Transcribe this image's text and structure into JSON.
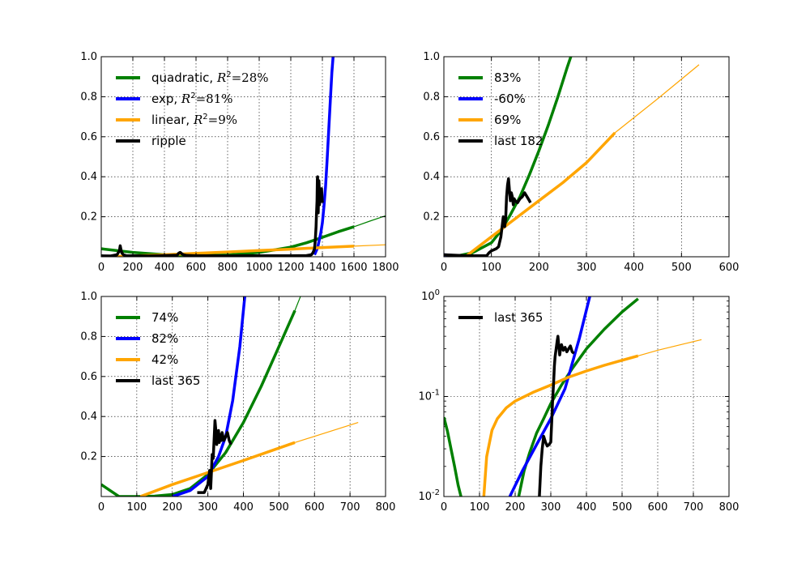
{
  "colors": {
    "quadratic": "#008000",
    "exp": "#0000ff",
    "linear": "#ffa500",
    "ripple": "#000000"
  },
  "chart_data": [
    {
      "type": "line",
      "xlim": [
        0,
        1800
      ],
      "ylim": [
        0,
        1
      ],
      "yscale": "linear",
      "xticks": [
        0,
        200,
        400,
        600,
        800,
        1000,
        1200,
        1400,
        1600,
        1800
      ],
      "yticks": [
        0.2,
        0.4,
        0.6,
        0.8,
        1.0
      ],
      "ytick_labels": [
        "0.2",
        "0.4",
        "0.6",
        "0.8",
        "1.0"
      ],
      "grid": true,
      "legend": "top-left",
      "legend_labels": [
        {
          "main": "quadratic, ",
          "math": "R",
          "sup": "2",
          "rest": "=28%"
        },
        {
          "main": "exp, ",
          "math": "R",
          "sup": "2",
          "rest": "=81%"
        },
        {
          "main": "linear, ",
          "math": "R",
          "sup": "2",
          "rest": "=9%"
        },
        {
          "main": "ripple"
        }
      ],
      "series": [
        {
          "key": "quadratic",
          "color": "#008000",
          "x": [
            0,
            200,
            400,
            600,
            800,
            1000,
            1200,
            1300,
            1400,
            1500,
            1600
          ],
          "y": [
            0.04,
            0.022,
            0.01,
            0.006,
            0.009,
            0.022,
            0.048,
            0.07,
            0.097,
            0.125,
            0.15
          ],
          "width": 3.5
        },
        {
          "key": "quadratic",
          "color": "#008000",
          "x": [
            1600,
            1700,
            1800
          ],
          "y": [
            0.15,
            0.178,
            0.205
          ],
          "width": 1.2
        },
        {
          "key": "exp",
          "color": "#0000ff",
          "x": [
            1350,
            1370,
            1390,
            1400,
            1410,
            1420,
            1430,
            1440,
            1450,
            1460,
            1470
          ],
          "y": [
            0.01,
            0.045,
            0.12,
            0.17,
            0.25,
            0.35,
            0.48,
            0.63,
            0.78,
            0.92,
            1.02
          ],
          "width": 3.5
        },
        {
          "key": "linear",
          "color": "#ffa500",
          "x": [
            0,
            200,
            400,
            600,
            800,
            1000,
            1200,
            1400,
            1600
          ],
          "y": [
            0.0,
            0.004,
            0.01,
            0.017,
            0.024,
            0.031,
            0.038,
            0.046,
            0.053
          ],
          "width": 3.5
        },
        {
          "key": "linear",
          "color": "#ffa500",
          "x": [
            1600,
            1800
          ],
          "y": [
            0.053,
            0.06
          ],
          "width": 1.2
        },
        {
          "key": "ripple",
          "color": "#000000",
          "x": [
            0,
            60,
            100,
            115,
            120,
            125,
            130,
            140,
            160,
            200,
            300,
            400,
            480,
            490,
            500,
            510,
            520,
            540,
            600,
            700,
            800,
            900,
            1000,
            1100,
            1200,
            1300,
            1330,
            1340,
            1350,
            1355,
            1360,
            1362,
            1364,
            1366,
            1368,
            1370,
            1372,
            1374,
            1376,
            1378,
            1380,
            1382,
            1384,
            1386,
            1388,
            1390,
            1392,
            1395,
            1398,
            1400
          ],
          "y": [
            0.005,
            0.004,
            0.01,
            0.03,
            0.055,
            0.035,
            0.02,
            0.01,
            0.005,
            0.005,
            0.004,
            0.006,
            0.008,
            0.018,
            0.022,
            0.015,
            0.01,
            0.007,
            0.005,
            0.005,
            0.004,
            0.005,
            0.005,
            0.005,
            0.005,
            0.006,
            0.01,
            0.02,
            0.04,
            0.08,
            0.15,
            0.2,
            0.24,
            0.28,
            0.39,
            0.4,
            0.3,
            0.22,
            0.33,
            0.38,
            0.34,
            0.26,
            0.3,
            0.33,
            0.31,
            0.28,
            0.3,
            0.34,
            0.29,
            0.27
          ],
          "width": 3.5
        }
      ]
    },
    {
      "type": "line",
      "xlim": [
        0,
        600
      ],
      "ylim": [
        0,
        1
      ],
      "yscale": "linear",
      "xticks": [
        0,
        100,
        200,
        300,
        400,
        500,
        600
      ],
      "yticks": [
        0.2,
        0.4,
        0.6,
        0.8,
        1.0
      ],
      "ytick_labels": [
        "0.2",
        "0.4",
        "0.6",
        "0.8",
        "1.0"
      ],
      "grid": true,
      "legend": "top-left",
      "legend_labels": [
        {
          "main": "83%"
        },
        {
          "main": "-60%"
        },
        {
          "main": "69%"
        },
        {
          "main": "last 182"
        }
      ],
      "series": [
        {
          "key": "quadratic",
          "color": "#008000",
          "x": [
            20,
            60,
            100,
            120,
            140,
            160,
            180,
            200,
            220,
            240,
            260,
            270
          ],
          "y": [
            0.0,
            0.02,
            0.07,
            0.13,
            0.21,
            0.3,
            0.41,
            0.53,
            0.66,
            0.8,
            0.95,
            1.02
          ],
          "width": 3.5
        },
        {
          "key": "exp",
          "color": "#0000ff",
          "x": [
            0,
            30,
            60
          ],
          "y": [
            0.01,
            0.005,
            0.002
          ],
          "width": 3.5
        },
        {
          "key": "linear",
          "color": "#ffa500",
          "x": [
            45,
            100,
            150,
            200,
            250,
            300,
            360
          ],
          "y": [
            0.0,
            0.1,
            0.19,
            0.28,
            0.37,
            0.47,
            0.62
          ],
          "width": 3.5
        },
        {
          "key": "linear",
          "color": "#ffa500",
          "x": [
            360,
            450,
            537
          ],
          "y": [
            0.62,
            0.79,
            0.96
          ],
          "width": 1.2
        },
        {
          "key": "ripple",
          "color": "#000000",
          "x": [
            0,
            50,
            90,
            95,
            100,
            110,
            115,
            120,
            125,
            128,
            130,
            132,
            134,
            136,
            138,
            140,
            142,
            144,
            146,
            148,
            150,
            155,
            160,
            165,
            170,
            175,
            180,
            182
          ],
          "y": [
            0.01,
            0.005,
            0.005,
            0.02,
            0.03,
            0.04,
            0.05,
            0.1,
            0.2,
            0.15,
            0.19,
            0.3,
            0.36,
            0.39,
            0.33,
            0.28,
            0.32,
            0.3,
            0.26,
            0.29,
            0.28,
            0.27,
            0.29,
            0.3,
            0.32,
            0.3,
            0.28,
            0.27
          ],
          "width": 3.5
        }
      ]
    },
    {
      "type": "line",
      "xlim": [
        0,
        800
      ],
      "ylim": [
        0,
        1
      ],
      "yscale": "linear",
      "xticks": [
        0,
        100,
        200,
        300,
        400,
        500,
        600,
        700,
        800
      ],
      "yticks": [
        0.2,
        0.4,
        0.6,
        0.8,
        1.0
      ],
      "ytick_labels": [
        "0.2",
        "0.4",
        "0.6",
        "0.8",
        "1.0"
      ],
      "grid": true,
      "legend": "top-left",
      "legend_labels": [
        {
          "main": "74%"
        },
        {
          "main": "82%"
        },
        {
          "main": "42%"
        },
        {
          "main": "last 365"
        }
      ],
      "series": [
        {
          "key": "quadratic",
          "color": "#008000",
          "x": [
            0,
            50,
            100,
            150,
            200,
            250,
            300,
            350,
            400,
            450,
            500,
            545
          ],
          "y": [
            0.06,
            0.0,
            0.0,
            0.002,
            0.01,
            0.04,
            0.11,
            0.22,
            0.37,
            0.55,
            0.75,
            0.93
          ],
          "width": 3.5
        },
        {
          "key": "quadratic",
          "color": "#008000",
          "x": [
            545,
            565
          ],
          "y": [
            0.93,
            1.02
          ],
          "width": 1.2
        },
        {
          "key": "exp",
          "color": "#0000ff",
          "x": [
            200,
            250,
            300,
            330,
            350,
            370,
            390,
            405
          ],
          "y": [
            0.0,
            0.03,
            0.1,
            0.2,
            0.3,
            0.48,
            0.75,
            1.02
          ],
          "width": 3.5
        },
        {
          "key": "linear",
          "color": "#ffa500",
          "x": [
            110,
            200,
            300,
            400,
            545
          ],
          "y": [
            0.0,
            0.06,
            0.12,
            0.18,
            0.27
          ],
          "width": 3.5
        },
        {
          "key": "linear",
          "color": "#ffa500",
          "x": [
            545,
            723
          ],
          "y": [
            0.27,
            0.37
          ],
          "width": 1.2
        },
        {
          "key": "ripple",
          "color": "#000000",
          "x": [
            270,
            290,
            300,
            305,
            308,
            310,
            312,
            315,
            318,
            320,
            322,
            325,
            328,
            330,
            332,
            335,
            338,
            340,
            345,
            350,
            355,
            360,
            365
          ],
          "y": [
            0.02,
            0.02,
            0.06,
            0.13,
            0.04,
            0.12,
            0.21,
            0.19,
            0.3,
            0.38,
            0.34,
            0.26,
            0.3,
            0.33,
            0.27,
            0.31,
            0.28,
            0.32,
            0.28,
            0.3,
            0.32,
            0.28,
            0.26
          ],
          "width": 3.5
        }
      ]
    },
    {
      "type": "line",
      "xlim": [
        0,
        800
      ],
      "ylim": [
        0.01,
        1
      ],
      "yscale": "log",
      "xticks": [
        0,
        100,
        200,
        300,
        400,
        500,
        600,
        700,
        800
      ],
      "yticks": [
        0.01,
        0.1,
        1
      ],
      "ytick_labels": [
        {
          "base": "10",
          "exp": "-2"
        },
        {
          "base": "10",
          "exp": "-1"
        },
        {
          "base": "10",
          "exp": "0"
        }
      ],
      "grid": true,
      "legend": "top-left",
      "legend_labels": [
        {
          "main": "last 365"
        }
      ],
      "series": [
        {
          "key": "quadratic",
          "color": "#008000",
          "x": [
            0,
            10,
            20,
            30,
            40,
            48
          ],
          "y": [
            0.062,
            0.045,
            0.03,
            0.02,
            0.013,
            0.01
          ],
          "width": 3.5
        },
        {
          "key": "quadratic",
          "color": "#008000",
          "x": [
            210,
            225,
            240,
            260,
            280,
            300,
            330,
            360,
            400,
            450,
            500,
            545
          ],
          "y": [
            0.01,
            0.018,
            0.027,
            0.043,
            0.06,
            0.085,
            0.13,
            0.19,
            0.3,
            0.47,
            0.7,
            0.95
          ],
          "width": 3.5
        },
        {
          "key": "exp",
          "color": "#0000ff",
          "x": [
            185,
            220,
            260,
            300,
            340,
            380,
            410
          ],
          "y": [
            0.01,
            0.018,
            0.033,
            0.06,
            0.12,
            0.38,
            1.02
          ],
          "width": 3.5
        },
        {
          "key": "linear",
          "color": "#ffa500",
          "x": [
            112,
            120,
            135,
            150,
            175,
            200,
            250,
            300,
            350,
            400,
            450,
            500,
            545
          ],
          "y": [
            0.01,
            0.025,
            0.046,
            0.06,
            0.077,
            0.09,
            0.11,
            0.13,
            0.156,
            0.18,
            0.205,
            0.23,
            0.255
          ],
          "width": 3.5
        },
        {
          "key": "linear",
          "color": "#ffa500",
          "x": [
            545,
            600,
            650,
            723
          ],
          "y": [
            0.255,
            0.29,
            0.32,
            0.37
          ],
          "width": 1.2
        },
        {
          "key": "ripple",
          "color": "#000000",
          "x": [
            268,
            272,
            276,
            280,
            285,
            290,
            295,
            300,
            303,
            305,
            308,
            310,
            312,
            315,
            318,
            320,
            322,
            325,
            328,
            330,
            335,
            340,
            345,
            350,
            355,
            360,
            365
          ],
          "y": [
            0.01,
            0.02,
            0.03,
            0.04,
            0.035,
            0.032,
            0.033,
            0.035,
            0.06,
            0.09,
            0.14,
            0.2,
            0.25,
            0.3,
            0.36,
            0.4,
            0.33,
            0.26,
            0.31,
            0.33,
            0.29,
            0.31,
            0.28,
            0.3,
            0.32,
            0.28,
            0.27
          ],
          "width": 3.5
        }
      ]
    }
  ]
}
